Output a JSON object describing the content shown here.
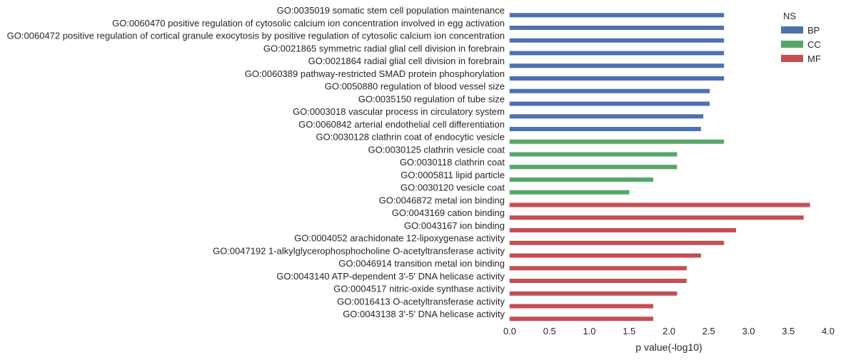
{
  "chart_data": {
    "type": "bar",
    "orientation": "horizontal",
    "xlabel": "p value(-log10)",
    "ylabel": "",
    "xlim": [
      0,
      4
    ],
    "xticks": [
      "0.0",
      "0.5",
      "1.0",
      "1.5",
      "2.0",
      "2.5",
      "3.0",
      "3.5",
      "4.0"
    ],
    "grid": false,
    "legend": {
      "title": "NS",
      "placement": "top-right",
      "entries": [
        {
          "name": "BP",
          "color": "#4c72b0"
        },
        {
          "name": "CC",
          "color": "#55a868"
        },
        {
          "name": "MF",
          "color": "#c44e52"
        }
      ]
    },
    "categories": [
      "GO:0035019 somatic stem cell population maintenance",
      "GO:0060470 positive regulation of cytosolic calcium ion concentration involved in egg activation",
      "GO:0060472 positive regulation of cortical granule exocytosis by positive regulation of cytosolic calcium ion concentration",
      "GO:0021865 symmetric radial glial cell division in forebrain",
      "GO:0021864 radial glial cell division in forebrain",
      "GO:0060389 pathway-restricted SMAD protein phosphorylation",
      "GO:0050880 regulation of blood vessel size",
      "GO:0035150 regulation of tube size",
      "GO:0003018 vascular process in circulatory system",
      "GO:0060842 arterial endothelial cell differentiation",
      "GO:0030128 clathrin coat of endocytic vesicle",
      "GO:0030125 clathrin vesicle coat",
      "GO:0030118 clathrin coat",
      "GO:0005811 lipid particle",
      "GO:0030120 vesicle coat",
      "GO:0046872 metal ion binding",
      "GO:0043169 cation binding",
      "GO:0043167 ion binding",
      "GO:0004052 arachidonate 12-lipoxygenase activity",
      "GO:0047192 1-alkylglycerophosphocholine O-acetyltransferase activity",
      "GO:0046914 transition metal ion binding",
      "GO:0043140 ATP-dependent 3'-5' DNA helicase activity",
      "GO:0004517 nitric-oxide synthase activity",
      "GO:0016413 O-acetyltransferase activity",
      "GO:0043138 3'-5' DNA helicase activity"
    ],
    "series": [
      {
        "name": "BP",
        "color": "#4c72b0",
        "values": [
          2.69,
          2.69,
          2.69,
          2.69,
          2.69,
          2.69,
          2.51,
          2.51,
          2.43,
          2.4,
          null,
          null,
          null,
          null,
          null,
          null,
          null,
          null,
          null,
          null,
          null,
          null,
          null,
          null,
          null
        ]
      },
      {
        "name": "CC",
        "color": "#55a868",
        "values": [
          null,
          null,
          null,
          null,
          null,
          null,
          null,
          null,
          null,
          null,
          2.69,
          2.1,
          2.1,
          1.8,
          1.5,
          null,
          null,
          null,
          null,
          null,
          null,
          null,
          null,
          null,
          null
        ]
      },
      {
        "name": "MF",
        "color": "#c44e52",
        "values": [
          null,
          null,
          null,
          null,
          null,
          null,
          null,
          null,
          null,
          null,
          null,
          null,
          null,
          null,
          null,
          3.77,
          3.69,
          2.84,
          2.69,
          2.4,
          2.22,
          2.22,
          2.1,
          1.8,
          1.8
        ]
      }
    ]
  }
}
